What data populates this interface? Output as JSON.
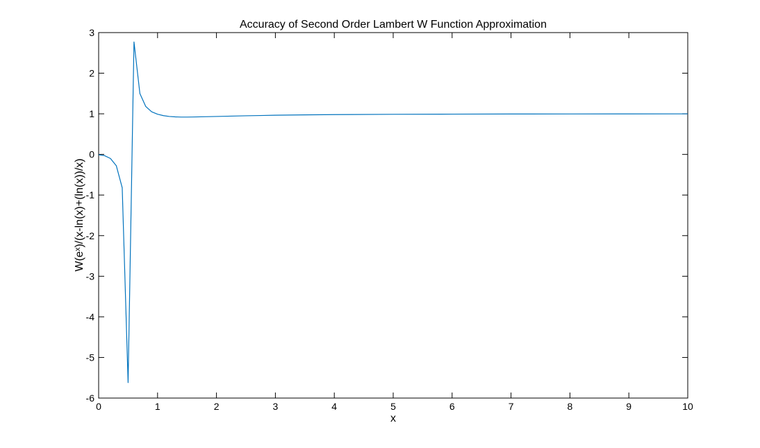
{
  "chart_data": {
    "type": "line",
    "title": "Accuracy of Second Order Lambert W Function Approximation",
    "xlabel": "x",
    "ylabel": "W(eˣ)/(x-ln(x)+(ln(x))/x)",
    "xlim": [
      0,
      10
    ],
    "ylim": [
      -6,
      3
    ],
    "xticks": [
      0,
      1,
      2,
      3,
      4,
      5,
      6,
      7,
      8,
      9,
      10
    ],
    "yticks": [
      -6,
      -5,
      -4,
      -3,
      -2,
      -1,
      0,
      1,
      2,
      3
    ],
    "grid": false,
    "line_color": "#0072BD",
    "series": [
      {
        "x": [
          0.001,
          0.1,
          0.2,
          0.3,
          0.4,
          0.5,
          0.6,
          0.7,
          0.8,
          0.9,
          1.0,
          1.1,
          1.2,
          1.3,
          1.4,
          1.5,
          1.6,
          1.8,
          2.0,
          2.5,
          3.0,
          3.5,
          4.0,
          5.0,
          6.0,
          7.0,
          8.0,
          9.0,
          10.0
        ],
        "y": [
          -0.01,
          -0.03,
          -0.1,
          -0.28,
          -0.82,
          -5.62,
          2.77,
          1.5,
          1.18,
          1.05,
          0.99,
          0.955,
          0.935,
          0.925,
          0.92,
          0.92,
          0.922,
          0.928,
          0.935,
          0.952,
          0.965,
          0.974,
          0.98,
          0.988,
          0.992,
          0.995,
          0.997,
          0.998,
          0.999
        ]
      }
    ]
  }
}
